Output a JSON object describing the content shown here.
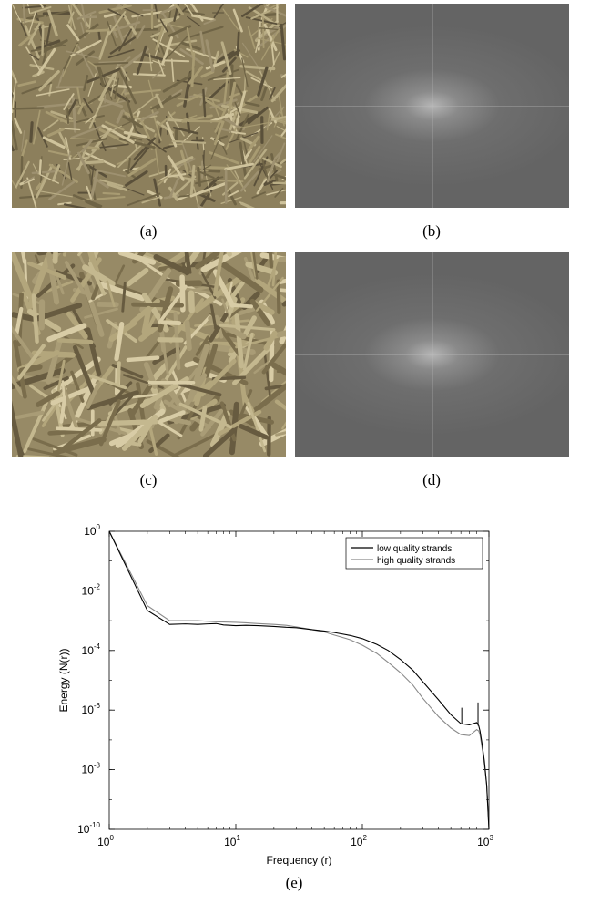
{
  "figure": {
    "captions": {
      "a": "(a)",
      "b": "(b)",
      "c": "(c)",
      "d": "(d)",
      "e": "(e)"
    }
  },
  "chart_data": {
    "type": "line",
    "xlabel": "Frequency (r)",
    "ylabel": "Energy (N(r))",
    "x_scale": "log",
    "y_scale": "log",
    "xlim": [
      1,
      1000
    ],
    "ylim": [
      1e-10,
      1
    ],
    "x_ticks": [
      {
        "value": 1,
        "base": "10",
        "exp": "0"
      },
      {
        "value": 10,
        "base": "10",
        "exp": "1"
      },
      {
        "value": 100,
        "base": "10",
        "exp": "2"
      },
      {
        "value": 1000,
        "base": "10",
        "exp": "3"
      }
    ],
    "y_ticks": [
      {
        "value": 1,
        "base": "10",
        "exp": "0"
      },
      {
        "value": 0.01,
        "base": "10",
        "exp": "-2"
      },
      {
        "value": 0.0001,
        "base": "10",
        "exp": "-4"
      },
      {
        "value": 1e-06,
        "base": "10",
        "exp": "-6"
      },
      {
        "value": 1e-08,
        "base": "10",
        "exp": "-8"
      },
      {
        "value": 1e-10,
        "base": "10",
        "exp": "-10"
      }
    ],
    "legend_position": "top-right",
    "grid": false,
    "series": [
      {
        "name": "low quality strands",
        "color": "#000000",
        "x": [
          1,
          2,
          3,
          4,
          5,
          6,
          7,
          8,
          10,
          12,
          15,
          20,
          25,
          30,
          40,
          50,
          60,
          80,
          100,
          130,
          160,
          200,
          250,
          300,
          400,
          500,
          600,
          700,
          800,
          830,
          850,
          880,
          920,
          960,
          1000
        ],
        "y": [
          1,
          0.0022,
          0.00075,
          0.00078,
          0.00075,
          0.00078,
          0.0008,
          0.00072,
          0.00068,
          0.0007,
          0.00068,
          0.00064,
          0.0006,
          0.00058,
          0.0005,
          0.00045,
          0.0004,
          0.00032,
          0.00025,
          0.00016,
          0.0001,
          5e-05,
          2.2e-05,
          9e-06,
          2.2e-06,
          7e-07,
          3.5e-07,
          3.2e-07,
          3.8e-07,
          3e-07,
          2e-07,
          8e-08,
          2e-08,
          3e-09,
          1e-10
        ]
      },
      {
        "name": "high quality strands",
        "color": "#8a8a8a",
        "x": [
          1,
          2,
          3,
          4,
          5,
          6,
          7,
          8,
          10,
          12,
          15,
          20,
          25,
          30,
          40,
          50,
          60,
          80,
          100,
          130,
          160,
          200,
          250,
          300,
          400,
          500,
          600,
          700,
          800,
          830,
          850,
          880,
          920,
          960,
          1000
        ],
        "y": [
          1,
          0.0032,
          0.001,
          0.001,
          0.001,
          0.00095,
          0.00092,
          0.0009,
          0.00088,
          0.00085,
          0.0008,
          0.00075,
          0.0007,
          0.00062,
          0.0005,
          0.00042,
          0.00033,
          0.00023,
          0.00015,
          8e-05,
          4e-05,
          1.8e-05,
          7e-06,
          2.5e-06,
          6e-07,
          2.5e-07,
          1.5e-07,
          1.4e-07,
          2.2e-07,
          2e-07,
          1.5e-07,
          6e-08,
          1.5e-08,
          3e-09,
          1e-10
        ]
      }
    ],
    "spikes": [
      {
        "series": 0,
        "x": 820,
        "y_from": 3e-07,
        "y_to": 1.8e-06
      },
      {
        "series": 0,
        "x": 610,
        "y_from": 3.5e-07,
        "y_to": 1.2e-06
      }
    ]
  }
}
